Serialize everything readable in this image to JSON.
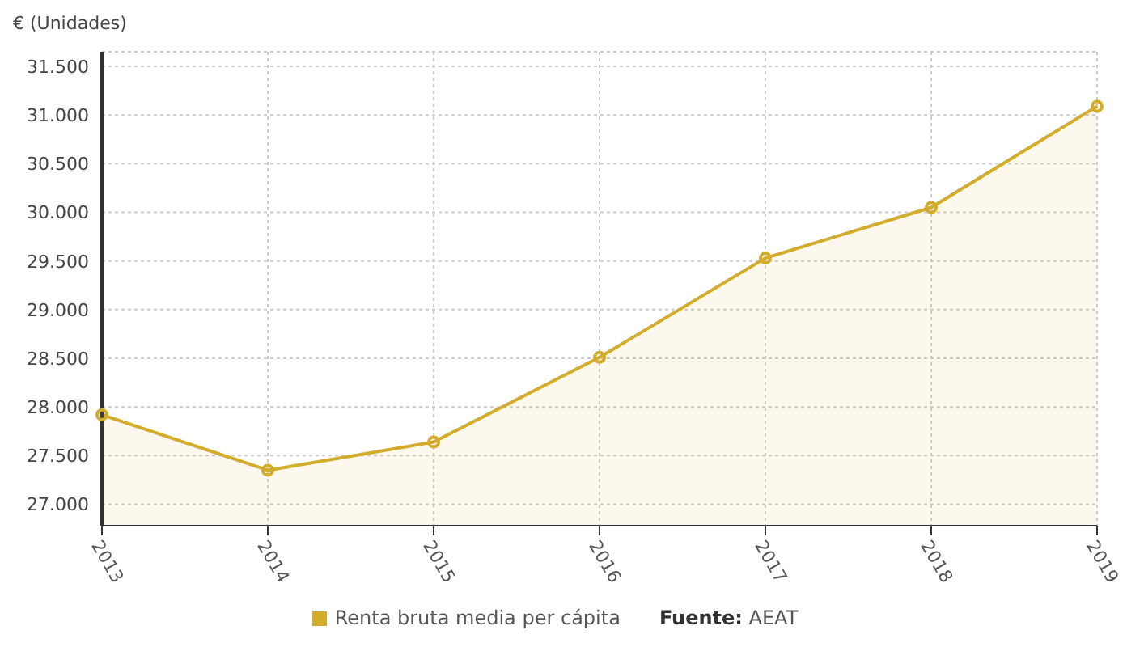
{
  "chart_data": {
    "type": "area",
    "ylabel": "€ (Unidades)",
    "categories": [
      "2013",
      "2014",
      "2015",
      "2016",
      "2017",
      "2018",
      "2019"
    ],
    "series": [
      {
        "name": "Renta bruta media per cápita",
        "color": "#d4ac2c",
        "values": [
          27920,
          27350,
          27640,
          28510,
          29530,
          30050,
          31090
        ]
      }
    ],
    "ylim": [
      26780,
      31650
    ],
    "yticks": [
      {
        "value": 27000,
        "label": "27.000"
      },
      {
        "value": 27500,
        "label": "27.500"
      },
      {
        "value": 28000,
        "label": "28.000"
      },
      {
        "value": 28500,
        "label": "28.500"
      },
      {
        "value": 29000,
        "label": "29.000"
      },
      {
        "value": 29500,
        "label": "29.500"
      },
      {
        "value": 30000,
        "label": "30.000"
      },
      {
        "value": 30500,
        "label": "30.500"
      },
      {
        "value": 31000,
        "label": "31.000"
      },
      {
        "value": 31500,
        "label": "31.500"
      }
    ],
    "grid": true,
    "legend": "bottom",
    "marker": "circle",
    "line_style": "solid",
    "annotations": [
      "Fuente: AEAT"
    ]
  }
}
